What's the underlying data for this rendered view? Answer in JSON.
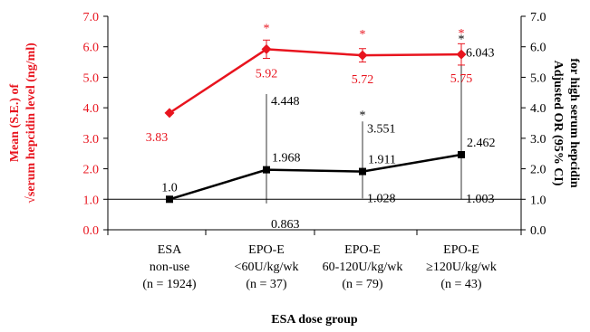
{
  "chart_data": {
    "type": "line",
    "xlabel": "ESA dose group",
    "categories": [
      [
        "ESA",
        "non-use",
        "(n = 1924)"
      ],
      [
        "EPO-E",
        "<60U/kg/wk",
        "(n = 37)"
      ],
      [
        "EPO-E",
        "60-120U/kg/wk",
        "(n = 79)"
      ],
      [
        "EPO-E",
        "≥120U/kg/wk",
        "(n = 43)"
      ]
    ],
    "ylabel_left": [
      "Mean (S.E.) of",
      "√serum hepcidin level (ng/ml)"
    ],
    "ylabel_right": [
      "Adjusted OR (95% CI)",
      "for high serum hepcidin"
    ],
    "ylim": [
      0,
      7
    ],
    "yticks": [
      "0.0",
      "1.0",
      "2.0",
      "3.0",
      "4.0",
      "5.0",
      "6.0",
      "7.0"
    ],
    "reference_line": 1.0,
    "colors": {
      "left_series": "#e8141e",
      "right_series": "#000000"
    },
    "series": [
      {
        "axis": "left",
        "marker": "diamond",
        "values": [
          3.83,
          5.92,
          5.72,
          5.75
        ],
        "labels": [
          "3.83",
          "5.92",
          "5.72",
          "5.75"
        ],
        "se": [
          null,
          0.3,
          0.22,
          0.35
        ],
        "significance": [
          "",
          "*",
          "*",
          "*"
        ]
      },
      {
        "axis": "right",
        "marker": "square",
        "values": [
          1.0,
          1.968,
          1.911,
          2.462
        ],
        "labels": [
          "1.0",
          "1.968",
          "1.911",
          "2.462"
        ],
        "ci_low": [
          null,
          0.863,
          1.028,
          1.003
        ],
        "ci_high": [
          null,
          4.448,
          3.551,
          6.043
        ],
        "ci_low_labels": [
          "",
          "0.863",
          "1.028",
          "1.003"
        ],
        "ci_high_labels": [
          "",
          "4.448",
          "3.551",
          "6.043"
        ],
        "significance": [
          "",
          "",
          "*",
          "*"
        ]
      }
    ]
  }
}
